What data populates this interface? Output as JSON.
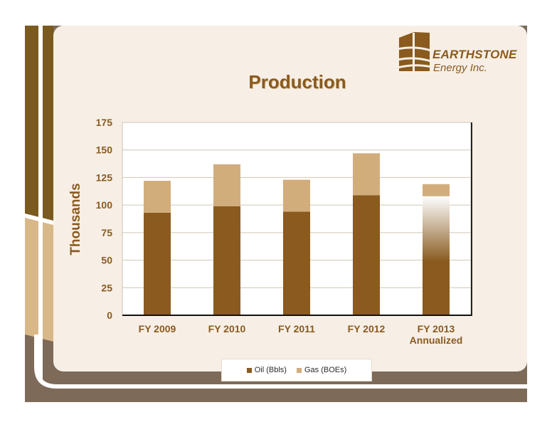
{
  "page": {
    "title": "Production",
    "brand_name": "EARTHSTONE",
    "brand_sub": "Energy Inc."
  },
  "colors": {
    "oil": "#8a5a1e",
    "gas": "#d2ad7c",
    "brand": "#8a5a1e",
    "slide_bg": "#f7efe6",
    "frame_dark": "#7a5a1f",
    "frame_light": "#d8b889",
    "frame_grey": "#7d6a59"
  },
  "icons": {
    "logo": "earthstone-layers-logo"
  },
  "legend": {
    "oil_label": "Oil (Bbls)",
    "gas_label": "Gas (BOEs)",
    "position": "bottom"
  },
  "chart_data": {
    "type": "bar",
    "stacked": true,
    "title": "Production",
    "xlabel": "",
    "ylabel": "Thousands",
    "categories": [
      "FY 2009",
      "FY 2010",
      "FY 2011",
      "FY 2012",
      "FY 2013\nAnnualized"
    ],
    "series": [
      {
        "name": "Oil (Bbls)",
        "values": [
          93,
          99,
          94,
          109,
          108
        ]
      },
      {
        "name": "Gas (BOEs)",
        "values": [
          29,
          38,
          29,
          38,
          11
        ]
      }
    ],
    "ylim": [
      0,
      175
    ],
    "yticks": [
      0,
      25,
      50,
      75,
      100,
      125,
      150,
      175
    ],
    "grid": true
  }
}
